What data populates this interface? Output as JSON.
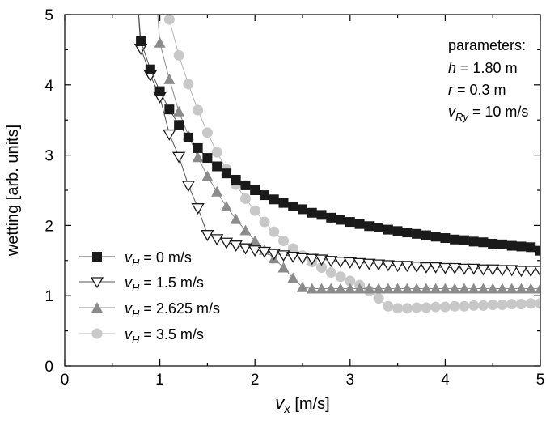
{
  "chart_data": {
    "type": "scatter",
    "xlabel": {
      "main": "v",
      "sub": "x",
      "unit": " [m/s]"
    },
    "ylabel": "wetting [arb. units]",
    "xlim": [
      0,
      5
    ],
    "ylim": [
      0,
      5
    ],
    "xticks": [
      "0",
      "1",
      "2",
      "3",
      "4",
      "5"
    ],
    "yticks": [
      "0",
      "1",
      "2",
      "3",
      "4",
      "5"
    ],
    "grid": false,
    "legend_position": "bottom-left",
    "parameters": {
      "title": "parameters:",
      "lines": [
        {
          "var": "h",
          "sub": "",
          "text": " = 1.80 m"
        },
        {
          "var": "r",
          "sub": "",
          "text": " = 0.3 m"
        },
        {
          "var": "v",
          "sub": "Ry",
          "text": " = 10 m/s"
        }
      ]
    },
    "series": [
      {
        "var": "v",
        "sub": "H",
        "label_text": " = 0 m/s",
        "marker": "square",
        "color": "#1a1a1a",
        "line_color": "#555555",
        "x": [
          0.8,
          0.9,
          1.0,
          1.1,
          1.2,
          1.3,
          1.4,
          1.5,
          1.6,
          1.7,
          1.8,
          1.9,
          2.0,
          2.1,
          2.2,
          2.3,
          2.4,
          2.5,
          2.6,
          2.7,
          2.8,
          2.9,
          3.0,
          3.1,
          3.2,
          3.3,
          3.4,
          3.5,
          3.6,
          3.7,
          3.8,
          3.9,
          4.0,
          4.1,
          4.2,
          4.3,
          4.4,
          4.5,
          4.6,
          4.7,
          4.8,
          4.9,
          5.0
        ],
        "y": [
          4.62,
          4.22,
          3.91,
          3.65,
          3.43,
          3.25,
          3.1,
          2.96,
          2.84,
          2.74,
          2.65,
          2.57,
          2.5,
          2.43,
          2.37,
          2.32,
          2.27,
          2.23,
          2.18,
          2.15,
          2.11,
          2.08,
          2.05,
          2.02,
          1.99,
          1.97,
          1.94,
          1.92,
          1.9,
          1.88,
          1.86,
          1.84,
          1.82,
          1.8,
          1.79,
          1.77,
          1.76,
          1.74,
          1.73,
          1.71,
          1.7,
          1.69,
          1.64
        ]
      },
      {
        "var": "v",
        "sub": "H",
        "label_text": " = 1.5 m/s",
        "marker": "triangle-down",
        "color": "#ffffff",
        "stroke": "#1a1a1a",
        "line_color": "#555555",
        "x": [
          0.8,
          0.9,
          1.0,
          1.1,
          1.2,
          1.3,
          1.4,
          1.5,
          1.6,
          1.7,
          1.8,
          1.9,
          2.0,
          2.1,
          2.2,
          2.3,
          2.4,
          2.5,
          2.6,
          2.7,
          2.8,
          2.9,
          3.0,
          3.1,
          3.2,
          3.3,
          3.4,
          3.5,
          3.6,
          3.7,
          3.8,
          3.9,
          4.0,
          4.1,
          4.2,
          4.3,
          4.4,
          4.5,
          4.6,
          4.7,
          4.8,
          4.9,
          5.0
        ],
        "y": [
          4.52,
          4.14,
          3.83,
          3.3,
          2.98,
          2.57,
          2.25,
          1.87,
          1.81,
          1.76,
          1.72,
          1.68,
          1.65,
          1.63,
          1.6,
          1.58,
          1.56,
          1.54,
          1.53,
          1.52,
          1.5,
          1.49,
          1.48,
          1.47,
          1.46,
          1.45,
          1.44,
          1.43,
          1.43,
          1.42,
          1.41,
          1.41,
          1.4,
          1.4,
          1.39,
          1.39,
          1.38,
          1.38,
          1.37,
          1.37,
          1.36,
          1.36,
          1.36
        ]
      },
      {
        "var": "v",
        "sub": "H",
        "label_text": " = 2.625 m/s",
        "marker": "triangle-up",
        "color": "#8c8c8c",
        "line_color": "#888888",
        "x": [
          1.0,
          1.1,
          1.2,
          1.3,
          1.4,
          1.5,
          1.6,
          1.7,
          1.8,
          1.9,
          2.0,
          2.1,
          2.2,
          2.3,
          2.4,
          2.5,
          2.6,
          2.7,
          2.8,
          2.9,
          3.0,
          3.1,
          3.2,
          3.3,
          3.4,
          3.5,
          3.6,
          3.7,
          3.8,
          3.9,
          4.0,
          4.1,
          4.2,
          4.3,
          4.4,
          4.5,
          4.6,
          4.7,
          4.8,
          4.9,
          5.0
        ],
        "y": [
          4.6,
          4.08,
          3.62,
          3.28,
          2.97,
          2.7,
          2.48,
          2.27,
          2.09,
          1.93,
          1.78,
          1.65,
          1.53,
          1.4,
          1.25,
          1.12,
          1.1,
          1.1,
          1.1,
          1.1,
          1.1,
          1.1,
          1.1,
          1.1,
          1.1,
          1.1,
          1.1,
          1.1,
          1.1,
          1.1,
          1.1,
          1.1,
          1.1,
          1.1,
          1.1,
          1.1,
          1.1,
          1.1,
          1.1,
          1.1,
          1.1
        ]
      },
      {
        "var": "v",
        "sub": "H",
        "label_text": " = 3.5 m/s",
        "marker": "circle",
        "color": "#c8c8c8",
        "line_color": "#b5b5b5",
        "x": [
          1.1,
          1.2,
          1.3,
          1.4,
          1.5,
          1.6,
          1.7,
          1.8,
          1.9,
          2.0,
          2.1,
          2.2,
          2.3,
          2.4,
          2.5,
          2.6,
          2.7,
          2.8,
          2.9,
          3.0,
          3.1,
          3.2,
          3.3,
          3.4,
          3.5,
          3.6,
          3.7,
          3.8,
          3.9,
          4.0,
          4.1,
          4.2,
          4.3,
          4.4,
          4.5,
          4.6,
          4.7,
          4.8,
          4.9,
          5.0
        ],
        "y": [
          4.93,
          4.42,
          4.01,
          3.64,
          3.32,
          3.04,
          2.8,
          2.58,
          2.38,
          2.21,
          2.05,
          1.91,
          1.78,
          1.67,
          1.57,
          1.48,
          1.4,
          1.33,
          1.27,
          1.21,
          1.15,
          1.07,
          0.96,
          0.85,
          0.82,
          0.82,
          0.83,
          0.83,
          0.84,
          0.84,
          0.85,
          0.85,
          0.86,
          0.86,
          0.87,
          0.87,
          0.88,
          0.88,
          0.89,
          0.89
        ]
      }
    ]
  }
}
